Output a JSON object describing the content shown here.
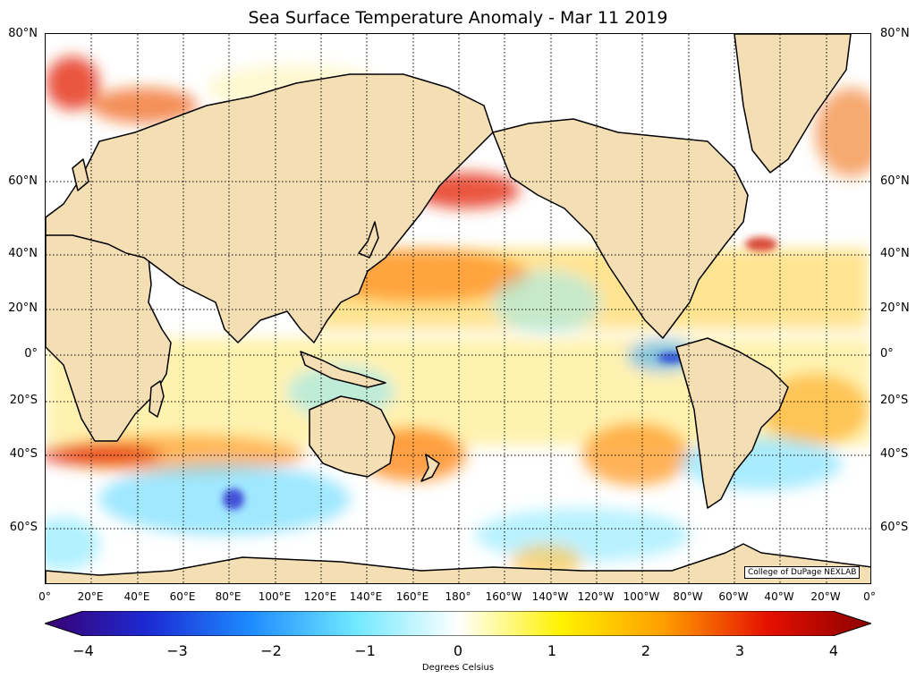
{
  "title": "Sea Surface Temperature Anomaly - Mar 11 2019",
  "lat_labels": [
    "80°N",
    "60°N",
    "40°N",
    "20°N",
    "0°",
    "20°S",
    "40°S",
    "60°S"
  ],
  "lon_labels": [
    "0°",
    "20°E",
    "40°E",
    "60°E",
    "80°E",
    "100°E",
    "120°E",
    "140°E",
    "160°E",
    "180°",
    "160°W",
    "140°W",
    "120°W",
    "100°W",
    "80°W",
    "60°W",
    "40°W",
    "20°W",
    "0°"
  ],
  "credit": "College of DuPage NEXLAB",
  "colorbar": {
    "ticks": [
      "−4",
      "−3",
      "−2",
      "−1",
      "0",
      "1",
      "2",
      "3",
      "4"
    ],
    "min": -4,
    "max": 4,
    "unit_label": "Degrees Celsius",
    "colors": [
      "#3a0070",
      "#1c2ad4",
      "#1e8cff",
      "#6fe8ff",
      "#ffffff",
      "#fff200",
      "#ff9d00",
      "#e51000",
      "#8a0000"
    ]
  },
  "land_color": "#f4deb4",
  "ocean_color": "#ffffff"
}
